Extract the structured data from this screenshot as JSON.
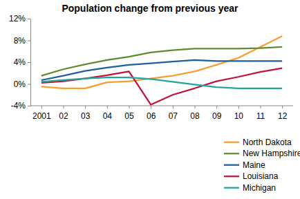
{
  "chart_data": {
    "type": "line",
    "title": "Population change from previous year",
    "categories": [
      "2001",
      "02",
      "03",
      "04",
      "05",
      "06",
      "07",
      "08",
      "09",
      "10",
      "11",
      "12"
    ],
    "series": [
      {
        "name": "North Dakota",
        "color": "#f79d34",
        "values": [
          -0.5,
          -0.8,
          -0.8,
          0.3,
          0.5,
          1.0,
          1.5,
          2.3,
          3.5,
          4.8,
          6.8,
          8.8
        ]
      },
      {
        "name": "New Hampshire",
        "color": "#5e8b2e",
        "values": [
          1.5,
          2.7,
          3.6,
          4.4,
          5.0,
          5.8,
          6.2,
          6.5,
          6.5,
          6.5,
          6.6,
          6.8
        ]
      },
      {
        "name": "Maine",
        "color": "#1f5f9e",
        "values": [
          0.7,
          1.5,
          2.4,
          3.0,
          3.5,
          3.8,
          4.1,
          4.4,
          4.2,
          4.2,
          4.2,
          4.2
        ]
      },
      {
        "name": "Louisiana",
        "color": "#c0143c",
        "values": [
          0.2,
          0.5,
          1.0,
          1.6,
          2.3,
          -3.8,
          -2.0,
          -0.8,
          0.5,
          1.3,
          2.2,
          2.9
        ]
      },
      {
        "name": "Michigan",
        "color": "#23a49c",
        "values": [
          0.4,
          0.7,
          1.0,
          1.2,
          1.2,
          0.9,
          0.4,
          -0.1,
          -0.6,
          -0.8,
          -0.8,
          -0.8
        ]
      }
    ],
    "ylim": [
      -4,
      12
    ],
    "yticks": [
      {
        "value": -4,
        "label": "-4%"
      },
      {
        "value": 0,
        "label": "0%"
      },
      {
        "value": 4,
        "label": "4%"
      },
      {
        "value": 8,
        "label": "8%"
      },
      {
        "value": 12,
        "label": "12%"
      }
    ],
    "grid": false,
    "legend": "bottom-right"
  }
}
